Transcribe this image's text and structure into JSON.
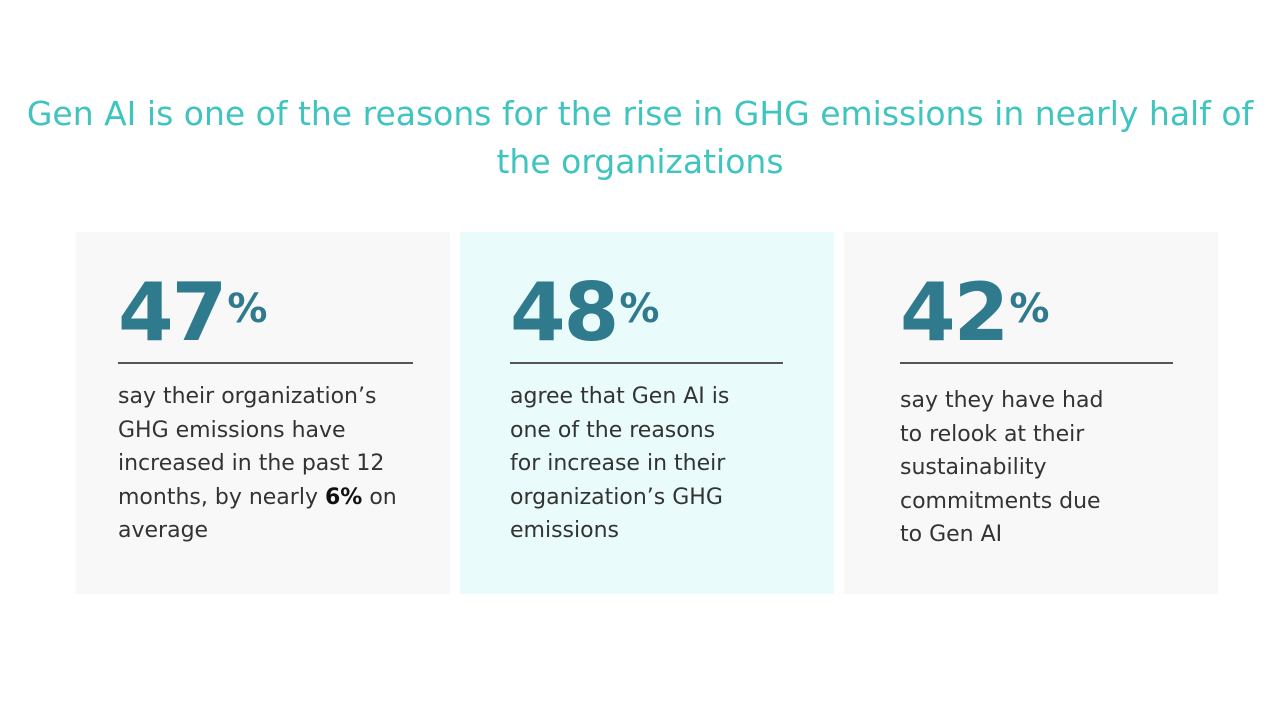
{
  "title": "Gen AI is one of the reasons for the rise in GHG emissions in nearly half of the organizations",
  "colors": {
    "title": "#3fc4bf",
    "number": "#2f7a8c",
    "card_bg": "#f8f8f8",
    "highlight_bg": "#e9fbfb"
  },
  "stats": [
    {
      "value": "47",
      "unit": "%",
      "text_before": "say their organization’s GHG emissions have increased in the past 12 months, by nearly ",
      "bold": "6%",
      "text_after": " on average"
    },
    {
      "value": "48",
      "unit": "%",
      "text_before": "agree that Gen AI is one of the reasons for increase in their organization’s GHG emissions"
    },
    {
      "value": "42",
      "unit": "%",
      "text_before": "say they have had to relook at their sustainability commitments due to Gen AI"
    }
  ]
}
